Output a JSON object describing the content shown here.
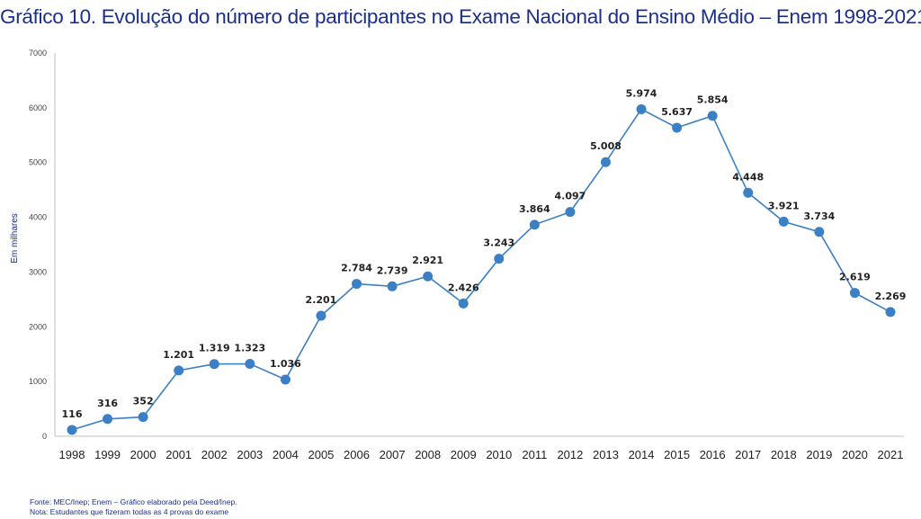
{
  "title": "Gráfico 10. Evolução do número de participantes no Exame Nacional do Ensino Médio – Enem 1998-2021.",
  "footer": {
    "source": "Fonte: MEC/Inep; Enem – Gráfico elaborado pela Deed/Inep.",
    "note": "Nota: Estudantes que fizeram todas as 4 provas do exame"
  },
  "chart_data": {
    "type": "line",
    "ylabel": "Em milhares",
    "xlabel": "",
    "ylim": [
      0,
      7000
    ],
    "yticks": [
      0,
      1000,
      2000,
      3000,
      4000,
      5000,
      6000,
      7000
    ],
    "grid": false,
    "legend": "none",
    "line_color": "#3b7fc4",
    "x": [
      "1998",
      "1999",
      "2000",
      "2001",
      "2002",
      "2003",
      "2004",
      "2005",
      "2006",
      "2007",
      "2008",
      "2009",
      "2010",
      "2011",
      "2012",
      "2013",
      "2014",
      "2015",
      "2016",
      "2017",
      "2018",
      "2019",
      "2020",
      "2021"
    ],
    "values": [
      116,
      316,
      352,
      1201,
      1319,
      1323,
      1036,
      2201,
      2784,
      2739,
      2921,
      2426,
      3243,
      3864,
      4097,
      5008,
      5974,
      5637,
      5854,
      4448,
      3921,
      3734,
      2619,
      2269
    ],
    "labels": [
      "116",
      "316",
      "352",
      "1.201",
      "1.319",
      "1.323",
      "1.036",
      "2.201",
      "2.784",
      "2.739",
      "2.921",
      "2.426",
      "3.243",
      "3.864",
      "4.097",
      "5.008",
      "5.974",
      "5.637",
      "5.854",
      "4.448",
      "3.921",
      "3.734",
      "2.619",
      "2.269"
    ]
  }
}
